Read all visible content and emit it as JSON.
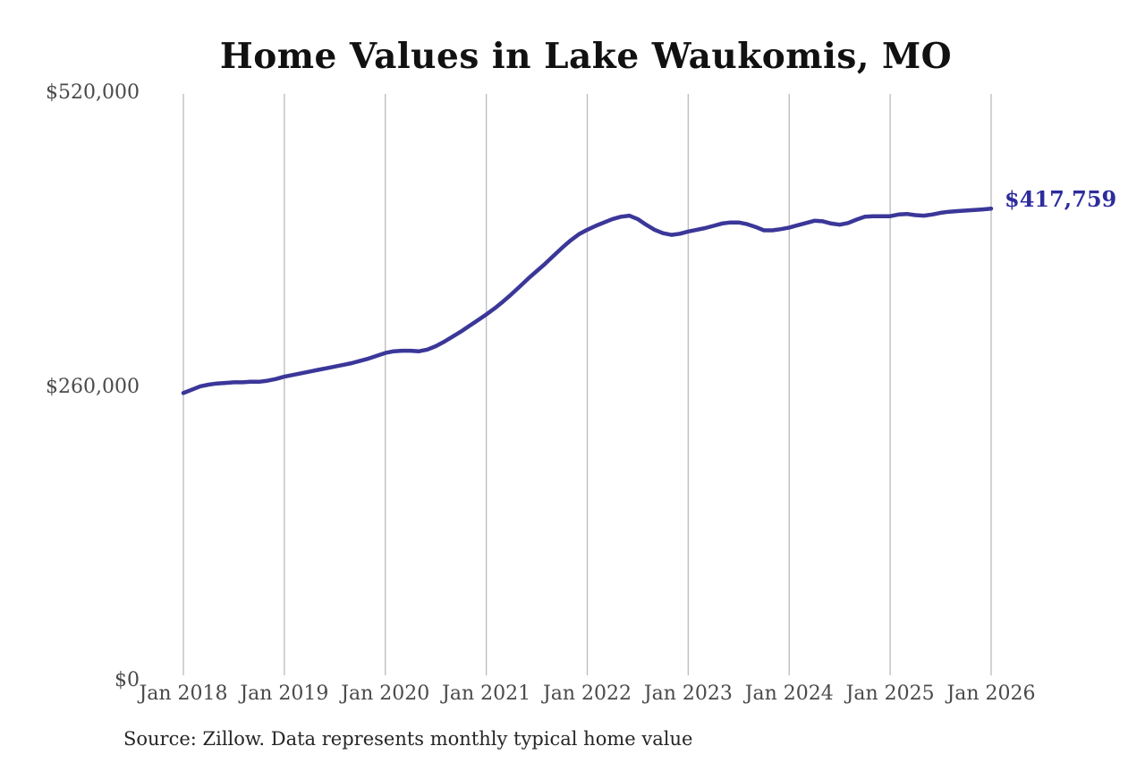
{
  "page": {
    "background": "#ffffff"
  },
  "source_note": "Source: Zillow. Data represents monthly typical home value",
  "chart_data": {
    "type": "line",
    "title": "Home Values in Lake Waukomis, MO",
    "xlabel": "",
    "ylabel": "",
    "ylim": [
      0,
      520000
    ],
    "grid": "vertical-only",
    "legend": "none",
    "frequency": "monthly",
    "x_start": "Jan 2018",
    "x_end": "Jan 2026",
    "x_tick_labels": [
      "Jan 2018",
      "Jan 2019",
      "Jan 2020",
      "Jan 2021",
      "Jan 2022",
      "Jan 2023",
      "Jan 2024",
      "Jan 2025",
      "Jan 2026"
    ],
    "y_ticks": [
      {
        "value": 0,
        "label": "$0"
      },
      {
        "value": 260000,
        "label": "$260,000"
      },
      {
        "value": 520000,
        "label": "$520,000"
      }
    ],
    "line_color": "#3b3799",
    "end_value": 417759,
    "end_label": "$417,759",
    "end_label_color": "#2d2c9c",
    "series_name": "Typical home value",
    "values": [
      254500,
      257500,
      260500,
      262000,
      263000,
      263500,
      264000,
      264000,
      264500,
      264500,
      265500,
      267000,
      269000,
      270500,
      272000,
      273500,
      275000,
      276500,
      278000,
      279500,
      281000,
      283000,
      285000,
      287500,
      290000,
      291500,
      292000,
      292000,
      291500,
      293000,
      296000,
      300000,
      304500,
      309000,
      314000,
      319000,
      324000,
      329500,
      335500,
      342000,
      349000,
      356000,
      362500,
      369000,
      376000,
      383000,
      389500,
      395000,
      399000,
      402500,
      405500,
      408500,
      410500,
      411500,
      408500,
      403500,
      399000,
      396000,
      394500,
      395500,
      397500,
      399000,
      400500,
      402500,
      404500,
      405500,
      405500,
      404000,
      401500,
      398500,
      398500,
      399500,
      401000,
      403000,
      405000,
      407000,
      406500,
      404500,
      403500,
      405000,
      408000,
      410500,
      411000,
      411000,
      411000,
      412500,
      413000,
      412000,
      411500,
      412500,
      414000,
      415000,
      415500,
      416000,
      416500,
      417000,
      417759
    ]
  }
}
